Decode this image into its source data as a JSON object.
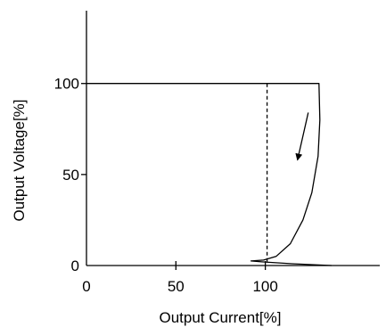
{
  "chart_data": {
    "type": "line",
    "xlabel": "Output Current[%]",
    "ylabel": "Output Voltage[%]",
    "xlim": [
      0,
      160
    ],
    "ylim": [
      0,
      140
    ],
    "x_ticks": [
      0,
      50,
      100
    ],
    "y_ticks": [
      0,
      50,
      100
    ],
    "x_tick_labels": [
      "0",
      "50",
      "100"
    ],
    "y_tick_labels": [
      "0",
      "50",
      "100"
    ],
    "grid": false,
    "series": [
      {
        "style": "solid",
        "points": [
          [
            0,
            100
          ],
          [
            130,
            100
          ],
          [
            130.5,
            80
          ],
          [
            129.5,
            60
          ],
          [
            126,
            40
          ],
          [
            121,
            25
          ],
          [
            114,
            12
          ],
          [
            106,
            5
          ],
          [
            99,
            3
          ],
          [
            92,
            2.5
          ],
          [
            98,
            2
          ],
          [
            115,
            1
          ],
          [
            137,
            0
          ]
        ]
      },
      {
        "style": "dashed",
        "points": [
          [
            101,
            100
          ],
          [
            101,
            2
          ]
        ]
      }
    ],
    "annotations": [
      {
        "type": "arrow",
        "from": [
          124,
          84
        ],
        "to": [
          118,
          58
        ]
      }
    ]
  }
}
